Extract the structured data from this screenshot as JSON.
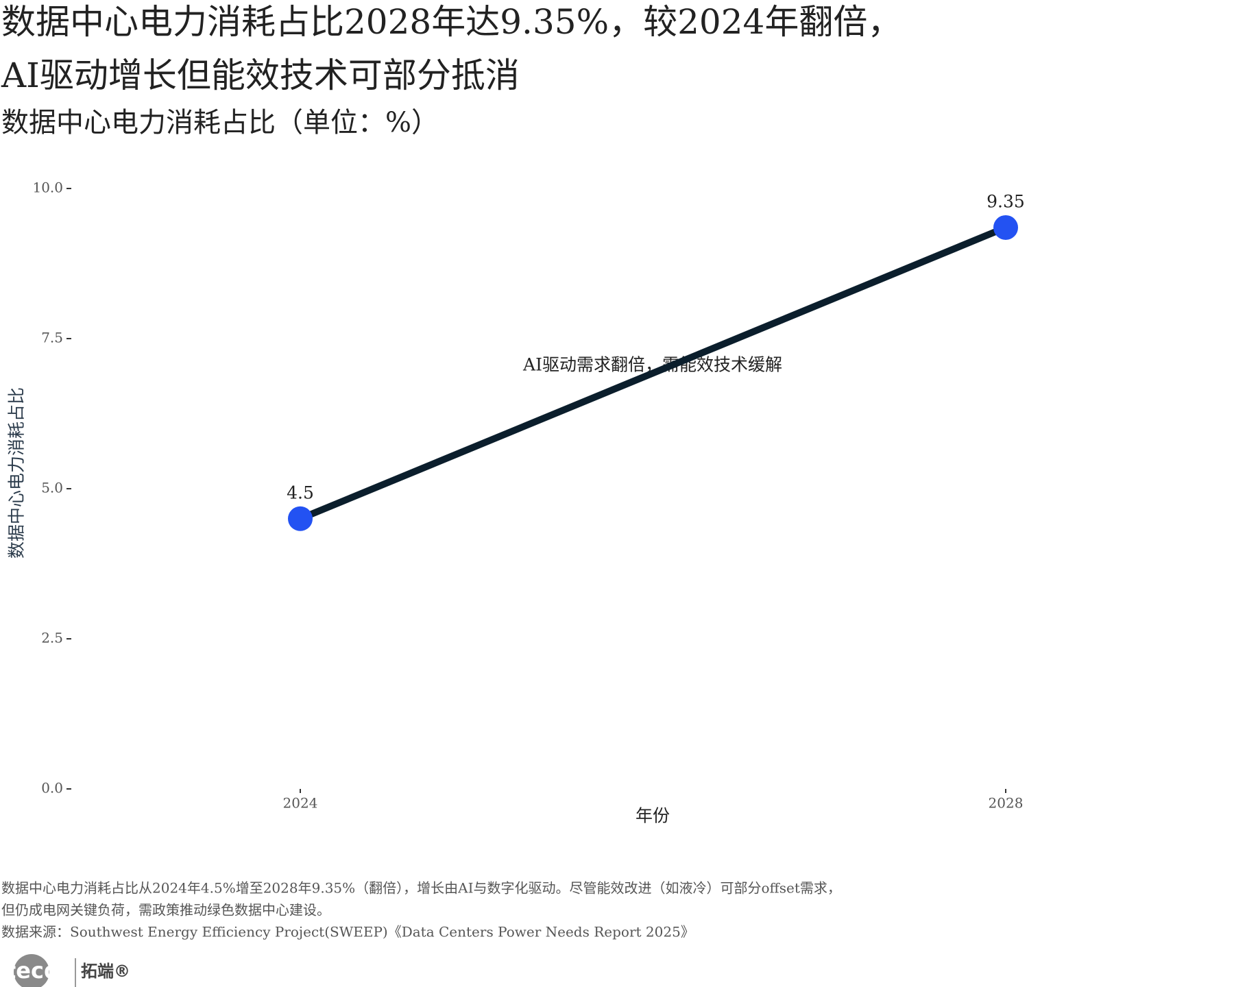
{
  "chart_data": {
    "type": "line",
    "title": [
      "数据中心电力消耗占比2028年达9.35%，较2024年翻倍，",
      "AI驱动增长但能效技术可部分抵消"
    ],
    "subtitle": "数据中心电力消耗占比（单位：%）",
    "categories": [
      "2024",
      "2028"
    ],
    "series": [
      {
        "name": "数据中心电力消耗占比",
        "values": [
          4.5,
          9.35
        ],
        "line_color": "#0b1e2c",
        "point_color": "#2352f2"
      }
    ],
    "ylim": [
      0,
      10
    ],
    "yticks": [
      {
        "value": 0,
        "label": "0.0"
      },
      {
        "value": 2.5,
        "label": "2.5"
      },
      {
        "value": 5,
        "label": "5.0"
      },
      {
        "value": 7.5,
        "label": "7.5"
      },
      {
        "value": 10,
        "label": "10.0"
      }
    ],
    "xlabel": "年份",
    "ylabel": "数据中心电力消耗占比",
    "annotation": "AI驱动需求翻倍，需能效技术缓解",
    "grid": false,
    "note": [
      "数据中心电力消耗占比从2024年4.5%增至2028年9.35%（翻倍），增长由AI与数字化驱动。尽管能效改进（如液冷）可部分offset需求，",
      "但仍成电网关键负荷，需政策推动绿色数据中心建设。"
    ],
    "source": "数据来源：Southwest Energy Efficiency Project(SWEEP)《Data Centers Power Needs Report 2025》",
    "logo": {
      "text": "tecdat",
      "brand": "拓端®"
    }
  }
}
